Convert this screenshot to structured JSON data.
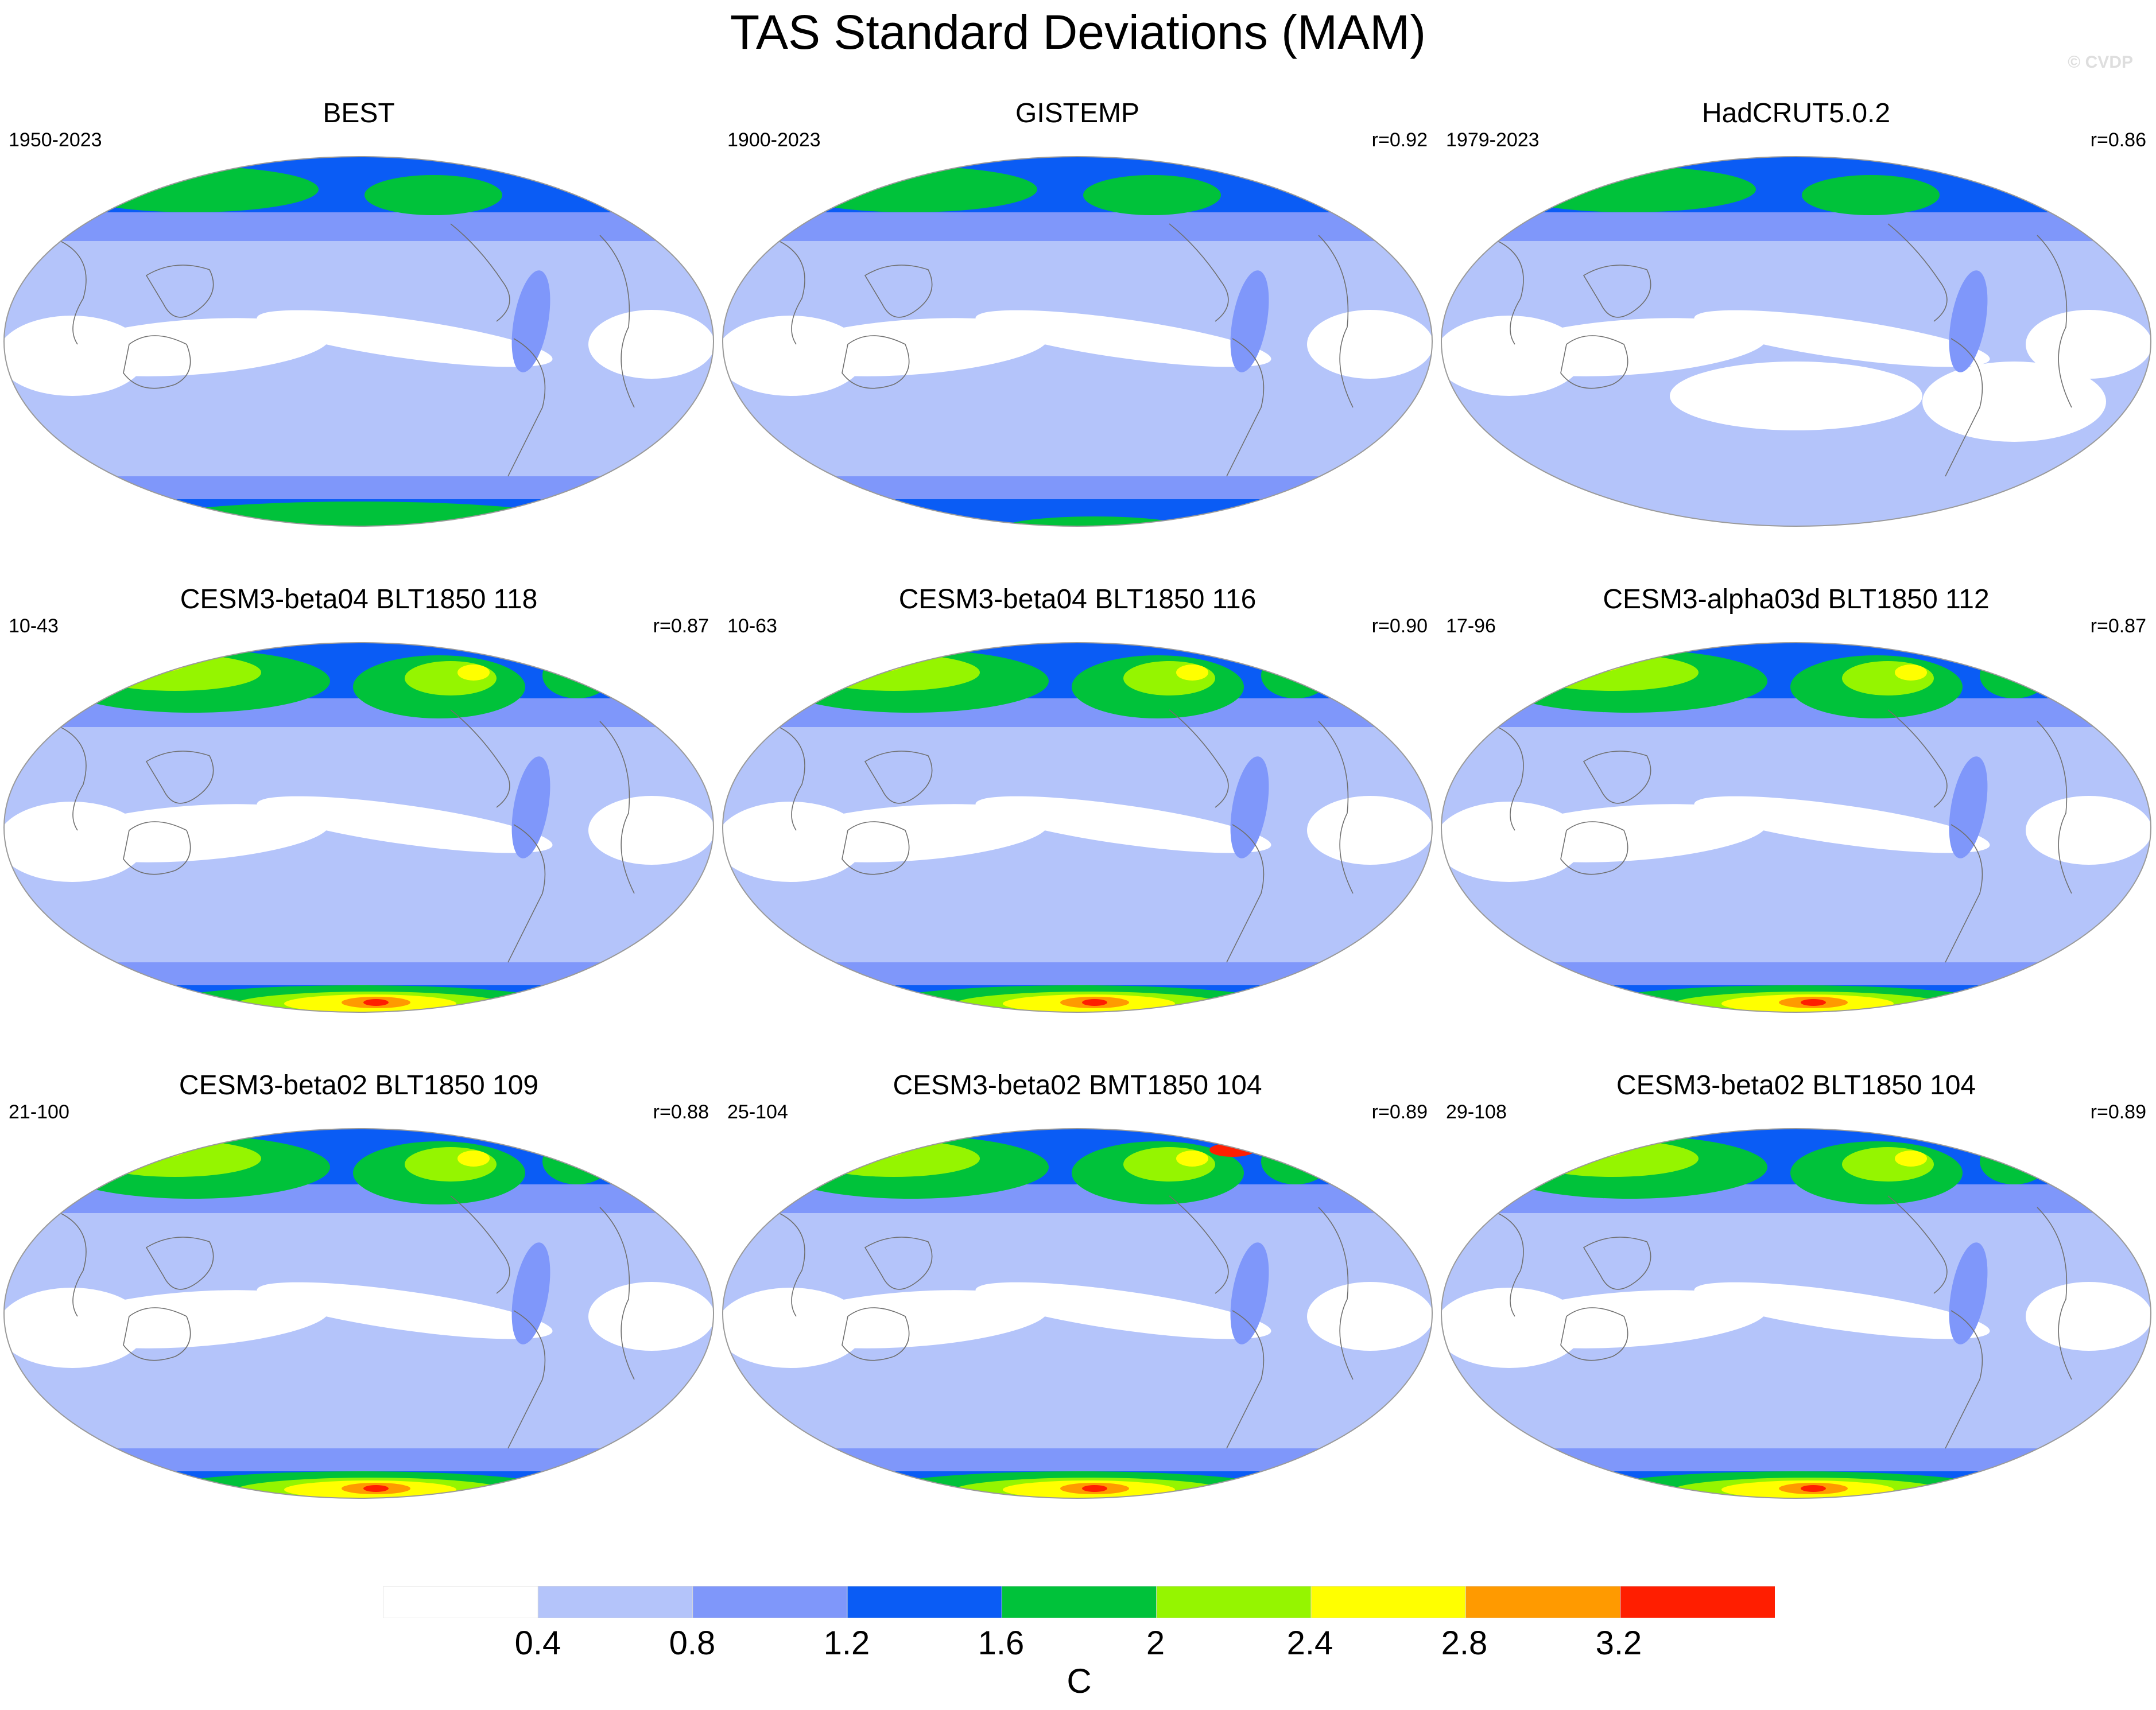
{
  "title": "TAS Standard Deviations (MAM)",
  "copyright": "© CVDP",
  "panels": [
    {
      "title": "BEST",
      "years": "1950-2023",
      "r": ""
    },
    {
      "title": "GISTEMP",
      "years": "1900-2023",
      "r": "r=0.92"
    },
    {
      "title": "HadCRUT5.0.2",
      "years": "1979-2023",
      "r": "r=0.86"
    },
    {
      "title": "CESM3-beta04 BLT1850 118",
      "years": "10-43",
      "r": "r=0.87"
    },
    {
      "title": "CESM3-beta04 BLT1850 116",
      "years": "10-63",
      "r": "r=0.90"
    },
    {
      "title": "CESM3-alpha03d BLT1850 112",
      "years": "17-96",
      "r": "r=0.87"
    },
    {
      "title": "CESM3-beta02 BLT1850 109",
      "years": "21-100",
      "r": "r=0.88"
    },
    {
      "title": "CESM3-beta02 BMT1850 104",
      "years": "25-104",
      "r": "r=0.89"
    },
    {
      "title": "CESM3-beta02 BLT1850 104",
      "years": "29-108",
      "r": "r=0.89"
    }
  ],
  "colorbar": {
    "labels": [
      "0.4",
      "0.8",
      "1.2",
      "1.6",
      "2",
      "2.4",
      "2.8",
      "3.2"
    ],
    "colors": [
      "#ffffff",
      "#b4c4fa",
      "#7f97fa",
      "#0a5cf5",
      "#00c23a",
      "#95f500",
      "#ffff00",
      "#ff9a00",
      "#ff1e00"
    ],
    "units": "C"
  }
}
